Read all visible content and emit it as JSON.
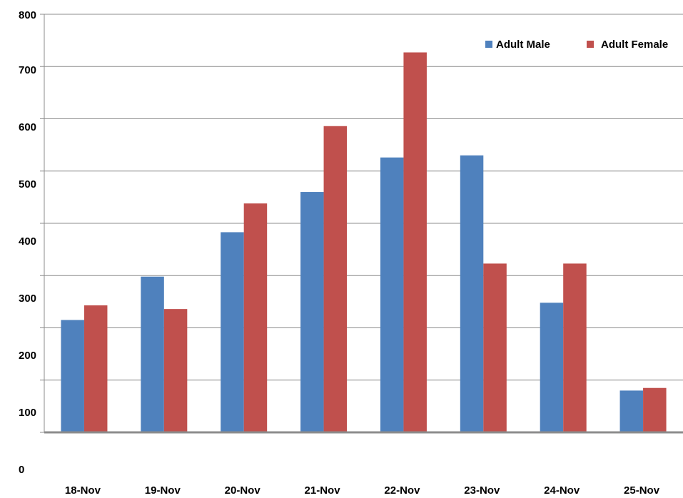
{
  "chart_data": {
    "type": "bar",
    "categories": [
      "18-Nov",
      "19-Nov",
      "20-Nov",
      "21-Nov",
      "22-Nov",
      "23-Nov",
      "24-Nov",
      "25-Nov"
    ],
    "series": [
      {
        "name": "Adult Male",
        "color": "#4F81BD",
        "values": [
          215,
          298,
          383,
          460,
          526,
          530,
          248,
          80
        ]
      },
      {
        "name": "Adult Female",
        "color": "#C0504D",
        "values": [
          243,
          236,
          438,
          586,
          727,
          323,
          323,
          85
        ]
      }
    ],
    "y_tick_labels": [
      "0",
      "100",
      "200",
      "300",
      "400",
      "500",
      "600",
      "700",
      "800"
    ],
    "ylim": [
      0,
      800
    ],
    "grid": true,
    "legend_position": "top-right"
  }
}
